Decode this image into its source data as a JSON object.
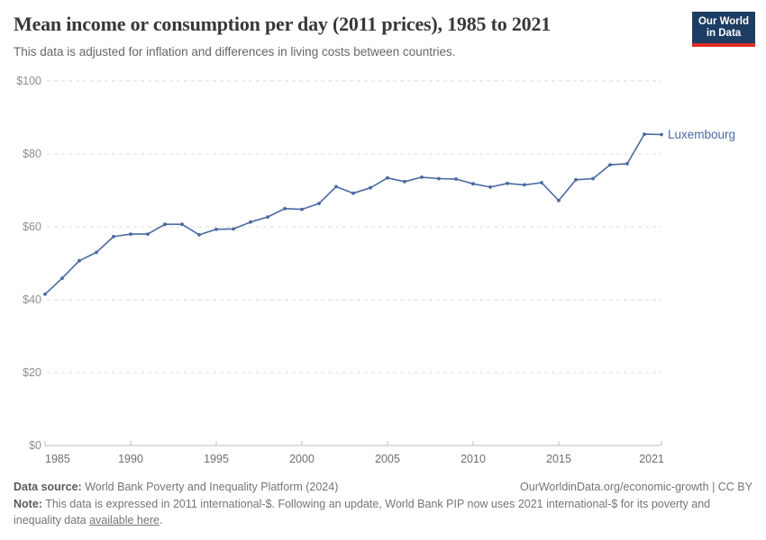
{
  "header": {
    "title": "Mean income or consumption per day (2011 prices), 1985 to 2021",
    "subtitle": "This data is adjusted for inflation and differences in living costs between countries.",
    "logo": {
      "line1": "Our World",
      "line2": "in Data",
      "bg_color": "#1d3d63",
      "stripe_color": "#dc2e22"
    }
  },
  "chart_data": {
    "type": "line",
    "title": "Mean income or consumption per day (2011 prices), 1985 to 2021",
    "xlabel": "",
    "ylabel": "",
    "x": [
      1985,
      1986,
      1987,
      1988,
      1989,
      1990,
      1991,
      1992,
      1993,
      1994,
      1995,
      1996,
      1997,
      1998,
      1999,
      2000,
      2001,
      2002,
      2003,
      2004,
      2005,
      2006,
      2007,
      2008,
      2009,
      2010,
      2011,
      2012,
      2013,
      2014,
      2015,
      2016,
      2017,
      2018,
      2019,
      2020,
      2021
    ],
    "series": [
      {
        "name": "Luxembourg",
        "color": "#4a69a2",
        "values": [
          41.5,
          45.9,
          50.7,
          53.0,
          57.3,
          58.0,
          58.0,
          60.7,
          60.7,
          57.8,
          59.3,
          59.4,
          61.3,
          62.7,
          65.0,
          64.8,
          66.4,
          71.0,
          69.2,
          70.7,
          73.4,
          72.4,
          73.6,
          73.2,
          73.1,
          71.8,
          70.9,
          71.9,
          71.5,
          72.1,
          67.2,
          72.9,
          73.2,
          77.0,
          77.3,
          85.4,
          85.3
        ]
      }
    ],
    "ylim": [
      0,
      100
    ],
    "yticks": [
      {
        "value": 0,
        "label": "$0"
      },
      {
        "value": 20,
        "label": "$20"
      },
      {
        "value": 40,
        "label": "$40"
      },
      {
        "value": 60,
        "label": "$60"
      },
      {
        "value": 80,
        "label": "$80"
      },
      {
        "value": 100,
        "label": "$100"
      }
    ],
    "xticks": [
      1985,
      1990,
      1995,
      2000,
      2005,
      2010,
      2015,
      2021
    ],
    "grid": "horizontal-dashed",
    "legend_position": "end-of-line-label",
    "end_label": "Luxembourg"
  },
  "footer": {
    "source_label": "Data source:",
    "source_text": "World Bank Poverty and Inequality Platform (2024)",
    "attribution": "OurWorldinData.org/economic-growth | CC BY",
    "note_label": "Note:",
    "note_text": "This data is expressed in 2011 international-$. Following an update, World Bank PIP now uses 2021 international-$ for its poverty and inequality data",
    "note_link": "available here",
    "note_suffix": "."
  },
  "colors": {
    "line": "#4a69a2",
    "title_text": "#383838",
    "subtitle_text": "#666666",
    "y_tick_label": "#8f8f8f",
    "x_tick_label": "#6e6e6e",
    "gridline": "#dcdcdc",
    "axis": "#bdbdbd",
    "logo_bg": "#1d3d63",
    "logo_stripe": "#dc2e22"
  }
}
